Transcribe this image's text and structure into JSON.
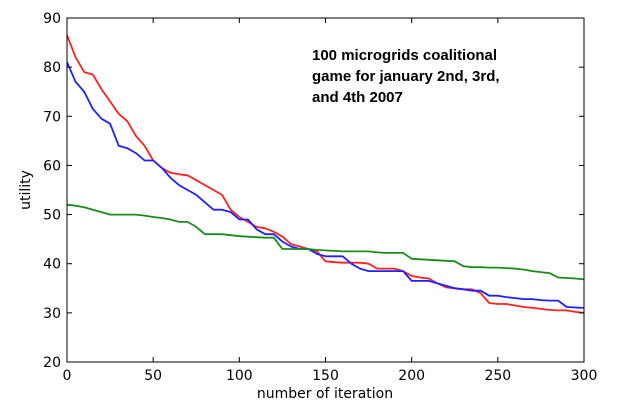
{
  "chart_data": {
    "type": "line",
    "title": "",
    "xlabel": "number of iteration",
    "ylabel": "utility",
    "xlim": [
      0,
      300
    ],
    "ylim": [
      20,
      90
    ],
    "xticks": [
      0,
      50,
      100,
      150,
      200,
      250,
      300
    ],
    "yticks": [
      20,
      30,
      40,
      50,
      60,
      70,
      80,
      90
    ],
    "grid": false,
    "annotation": {
      "lines": [
        "100 microgrids coalitional",
        "game for january 2nd, 3rd,",
        "and 4th 2007"
      ]
    },
    "series": [
      {
        "color": "#ff2020",
        "x": [
          0,
          5,
          10,
          15,
          20,
          25,
          30,
          35,
          40,
          45,
          50,
          55,
          60,
          65,
          70,
          75,
          80,
          85,
          90,
          95,
          100,
          105,
          110,
          115,
          120,
          125,
          130,
          135,
          140,
          145,
          150,
          155,
          160,
          165,
          170,
          175,
          180,
          185,
          190,
          195,
          200,
          205,
          210,
          215,
          220,
          225,
          230,
          235,
          240,
          245,
          250,
          255,
          260,
          265,
          270,
          275,
          280,
          285,
          290,
          295,
          300
        ],
        "y": [
          86.5,
          82,
          79,
          78.5,
          75.5,
          73,
          70.5,
          69,
          66,
          64,
          61,
          59.5,
          58.5,
          58.2,
          58,
          57,
          56,
          55,
          54,
          51,
          49.5,
          48.5,
          47.5,
          47.2,
          46.5,
          45.5,
          44,
          43.5,
          43,
          42.5,
          40.5,
          40.3,
          40.2,
          40.2,
          40.2,
          40,
          39,
          39,
          39,
          38.5,
          37.5,
          37.2,
          37,
          36,
          35.2,
          35,
          34.8,
          34.8,
          34,
          32,
          31.8,
          31.8,
          31.5,
          31.2,
          31,
          30.8,
          30.6,
          30.5,
          30.5,
          30.2,
          30
        ]
      },
      {
        "color": "#2020ff",
        "x": [
          0,
          5,
          10,
          15,
          20,
          25,
          30,
          35,
          40,
          45,
          50,
          55,
          60,
          65,
          70,
          75,
          80,
          85,
          90,
          95,
          100,
          105,
          110,
          115,
          120,
          125,
          130,
          135,
          140,
          145,
          150,
          155,
          160,
          165,
          170,
          175,
          180,
          185,
          190,
          195,
          200,
          205,
          210,
          215,
          220,
          225,
          230,
          235,
          240,
          245,
          250,
          255,
          260,
          265,
          270,
          275,
          280,
          285,
          290,
          295,
          300
        ],
        "y": [
          81,
          77,
          75,
          71.5,
          69.5,
          68.5,
          64,
          63.5,
          62.5,
          61,
          61,
          59.5,
          57.5,
          56,
          55,
          54,
          52.5,
          51,
          51,
          50.5,
          49,
          49,
          47,
          46,
          46,
          44.5,
          43.5,
          43,
          43,
          42,
          41.5,
          41.5,
          41.5,
          40,
          39,
          38.5,
          38.5,
          38.5,
          38.5,
          38.5,
          36.5,
          36.5,
          36.5,
          36,
          35.5,
          35,
          34.8,
          34.5,
          34.5,
          33.5,
          33.5,
          33.2,
          33,
          32.8,
          32.8,
          32.6,
          32.5,
          32.5,
          31.2,
          31.1,
          31
        ]
      },
      {
        "color": "#1a8c1a",
        "x": [
          0,
          5,
          10,
          15,
          20,
          25,
          30,
          35,
          40,
          45,
          50,
          55,
          60,
          65,
          70,
          75,
          80,
          85,
          90,
          95,
          100,
          105,
          110,
          115,
          120,
          125,
          130,
          135,
          140,
          145,
          150,
          155,
          160,
          165,
          170,
          175,
          180,
          185,
          190,
          195,
          200,
          205,
          210,
          215,
          220,
          225,
          230,
          235,
          240,
          245,
          250,
          255,
          260,
          265,
          270,
          275,
          280,
          285,
          290,
          295,
          300
        ],
        "y": [
          52,
          51.8,
          51.5,
          51,
          50.5,
          50,
          50,
          50,
          50,
          49.8,
          49.5,
          49.3,
          49,
          48.5,
          48.5,
          47.5,
          46,
          46,
          46,
          45.8,
          45.6,
          45.5,
          45.4,
          45.3,
          45.3,
          43,
          43,
          43,
          43,
          42.8,
          42.7,
          42.6,
          42.5,
          42.5,
          42.5,
          42.5,
          42.3,
          42.2,
          42.2,
          42.2,
          41,
          40.9,
          40.8,
          40.7,
          40.6,
          40.5,
          39.5,
          39.3,
          39.3,
          39.2,
          39.2,
          39.1,
          39,
          38.8,
          38.5,
          38.3,
          38.1,
          37.2,
          37.1,
          37,
          36.8
        ]
      }
    ]
  }
}
